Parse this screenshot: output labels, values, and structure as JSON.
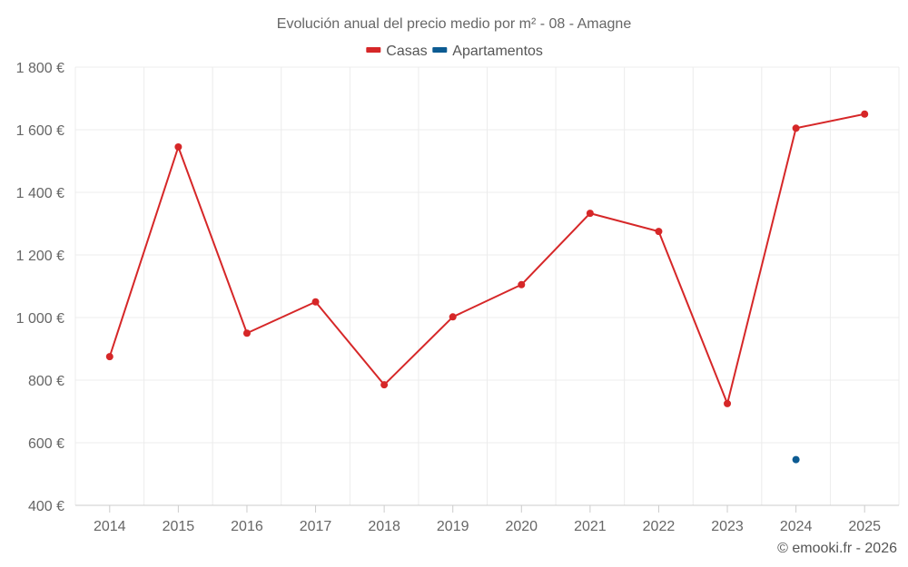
{
  "chart_data": {
    "type": "line",
    "title": "Evolución anual del precio medio por m² - 08 - Amagne",
    "categories": [
      "2014",
      "2015",
      "2016",
      "2017",
      "2018",
      "2019",
      "2020",
      "2021",
      "2022",
      "2023",
      "2024",
      "2025"
    ],
    "series": [
      {
        "name": "Casas",
        "color": "#d62728",
        "values": [
          875,
          1545,
          950,
          1050,
          785,
          1002,
          1105,
          1333,
          1275,
          725,
          1605,
          1650
        ]
      },
      {
        "name": "Apartamentos",
        "color": "#0c5b92",
        "values": [
          null,
          null,
          null,
          null,
          null,
          null,
          null,
          null,
          null,
          null,
          546,
          null
        ]
      }
    ],
    "ylim": [
      400,
      1800
    ],
    "yticks": [
      400,
      600,
      800,
      1000,
      1200,
      1400,
      1600,
      1800
    ],
    "ytick_labels": [
      "400 €",
      "600 €",
      "800 €",
      "1 000 €",
      "1 200 €",
      "1 400 €",
      "1 600 €",
      "1 800 €"
    ],
    "xlabel": "",
    "ylabel": "",
    "grid": true,
    "legend_position": "top-center"
  },
  "credit": "© emooki.fr - 2026"
}
